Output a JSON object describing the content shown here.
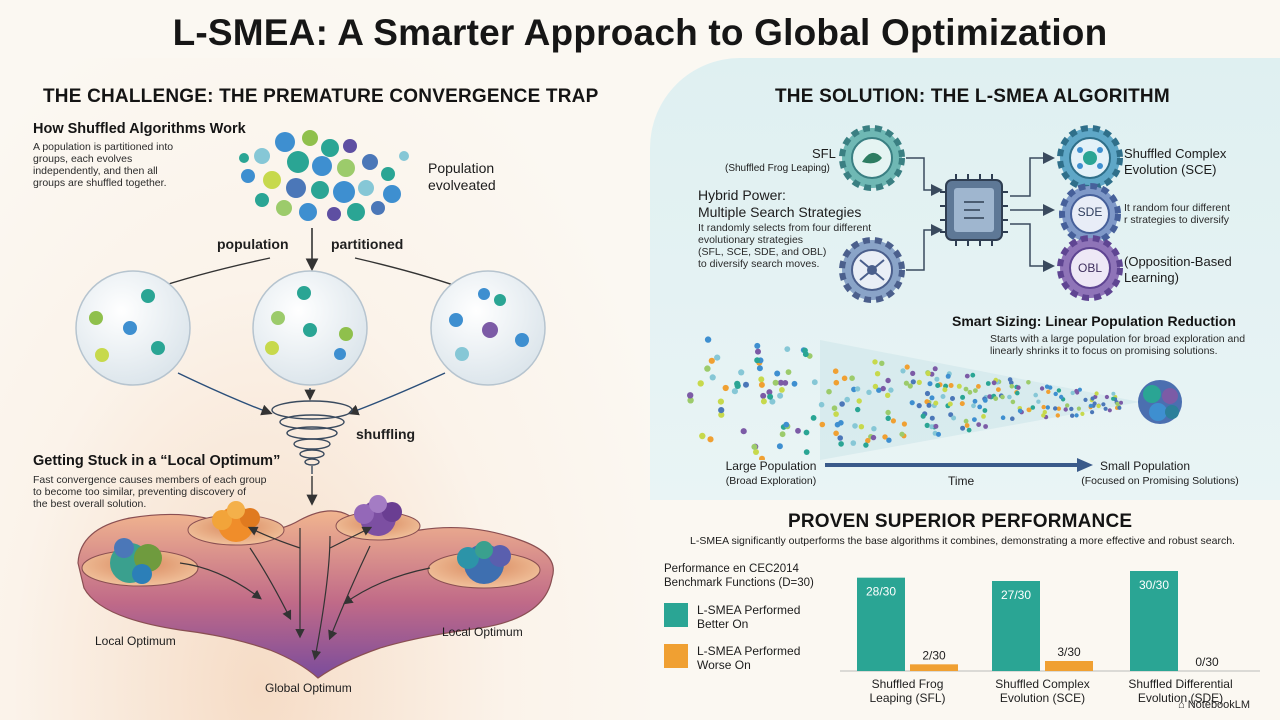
{
  "title": "L-SMEA: A Smarter Approach to Global Optimization",
  "challenge": {
    "heading": "THE CHALLENGE: THE PREMATURE CONVERGENCE TRAP",
    "how_title": "How Shuffled Algorithms Work",
    "how_lines": [
      "A population is partitioned into",
      "groups, each evolves",
      "independently, and then all",
      "groups are shuffled together."
    ],
    "population_evolved": [
      "Population",
      "evolveated"
    ],
    "population_label": "population",
    "partitioned_label": "partitioned",
    "shuffling_label": "shuffling",
    "stuck_title": "Getting Stuck in a “Local Optimum”",
    "stuck_lines": [
      "Fast convergence causes members of each group",
      "to become too similar, preventing discovery of",
      "the best overall solution."
    ],
    "local_left": "Local Optimum",
    "local_right": "Local Optimum",
    "global": "Global Optimum"
  },
  "solution": {
    "heading": "THE SOLUTION: THE L-SMEA ALGORITHM",
    "sfl": "SFL",
    "sfl_sub": "(Shuffled Frog Leaping)",
    "hybrid_title": [
      "Hybrid Power:",
      "Multiple Search Strategies"
    ],
    "hybrid_lines": [
      "It randomly selects from four different",
      "evolutionary strategies",
      "(SFL, SCE, SDE, and OBL)",
      "to diversify search moves."
    ],
    "sce_label": [
      "Shuffled Complex",
      "Evolution (SCE)"
    ],
    "sde_icon": "SDE",
    "sde_lines": [
      "It random four different",
      "r strategies to diversify"
    ],
    "obl_icon": "OBL",
    "obl_label": [
      "(Opposition-Based",
      "Learning)"
    ],
    "sizing_title": "Smart Sizing: Linear Population Reduction",
    "sizing_lines": [
      "Starts with a large population for broad exploration and",
      "linearly shrinks it to focus on promising solutions."
    ],
    "large_pop": "Large Population",
    "large_sub": "(Broad Exploration)",
    "time": "Time",
    "small_pop": "Small Population",
    "small_sub": "(Focused on Promising Solutions)"
  },
  "performance": {
    "heading": "PROVEN SUPERIOR PERFORMANCE",
    "desc": "L-SMEA significantly outperforms the base algorithms it combines, demonstrating a more effective and robust search.",
    "bench_title": [
      "Performance en CEC2014",
      "Benchmark Functions (D=30)"
    ],
    "legend_better": [
      "L-SMEA Performed",
      "Better On"
    ],
    "legend_worse": [
      "L-SMEA Performed",
      "Worse On"
    ]
  },
  "colors": {
    "better": "#2aa594",
    "worse": "#f0a032",
    "teal": "#5fb2b7",
    "purple": "#7c5ba6"
  },
  "chart_data": {
    "type": "bar",
    "categories": [
      "Shuffled Frog Leaping (SFL)",
      "Shuffled Complex Evolution (SCE)",
      "Shuffled Differential Evolution (SDE)"
    ],
    "category_lines": [
      [
        "Shuffled Frog",
        "Leaping (SFL)"
      ],
      [
        "Shuffled Complex",
        "Evolution (SCE)"
      ],
      [
        "Shuffled Differential",
        "Evolution (SDE)"
      ]
    ],
    "series": [
      {
        "name": "L-SMEA Performed Better On",
        "values": [
          28,
          27,
          30
        ],
        "labels": [
          "28/30",
          "27/30",
          "30/30"
        ]
      },
      {
        "name": "L-SMEA Performed Worse On",
        "values": [
          2,
          3,
          0
        ],
        "labels": [
          "2/30",
          "3/30",
          "0/30"
        ]
      }
    ],
    "ylim": [
      0,
      30
    ],
    "grid": false,
    "legend": "left"
  },
  "watermark": "NotebookLM"
}
